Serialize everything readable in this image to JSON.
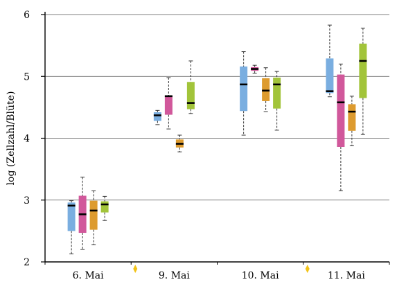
{
  "chart_data": {
    "type": "box",
    "title": "",
    "xlabel": "",
    "ylabel": "log (Zellzahl/Blüte)",
    "ylim": [
      2,
      6
    ],
    "yticks": [
      2,
      3,
      4,
      5,
      6
    ],
    "ytick_labels": [
      "2",
      "3",
      "4",
      "5",
      "6"
    ],
    "grid": true,
    "categories": [
      "6. Mai",
      "9. Mai",
      "10. Mai",
      "11. Mai"
    ],
    "series": [
      {
        "color": "#7aaee0",
        "boxes": [
          {
            "min": 2.13,
            "q1": 2.5,
            "median": 2.91,
            "q3": 2.96,
            "max": 2.99
          },
          {
            "min": 4.22,
            "q1": 4.28,
            "median": 4.37,
            "q3": 4.42,
            "max": 4.45
          },
          {
            "min": 4.05,
            "q1": 4.44,
            "median": 4.87,
            "q3": 5.16,
            "max": 5.4
          },
          {
            "min": 4.67,
            "q1": 4.73,
            "median": 4.76,
            "q3": 5.29,
            "max": 5.83
          }
        ]
      },
      {
        "color": "#d1589b",
        "boxes": [
          {
            "min": 2.2,
            "q1": 2.47,
            "median": 2.77,
            "q3": 3.07,
            "max": 3.37
          },
          {
            "min": 4.15,
            "q1": 4.38,
            "median": 4.68,
            "q3": 4.69,
            "max": 4.98
          },
          {
            "min": 5.05,
            "q1": 5.09,
            "median": 5.12,
            "q3": 5.15,
            "max": 5.18
          },
          {
            "min": 3.15,
            "q1": 3.86,
            "median": 4.58,
            "q3": 5.03,
            "max": 5.2
          }
        ]
      },
      {
        "color": "#dd9b2f",
        "boxes": [
          {
            "min": 2.28,
            "q1": 2.52,
            "median": 2.83,
            "q3": 2.99,
            "max": 3.15
          },
          {
            "min": 3.78,
            "q1": 3.85,
            "median": 3.91,
            "q3": 3.98,
            "max": 4.05
          },
          {
            "min": 4.43,
            "q1": 4.6,
            "median": 4.77,
            "q3": 4.97,
            "max": 5.14
          },
          {
            "min": 3.88,
            "q1": 4.12,
            "median": 4.43,
            "q3": 4.55,
            "max": 4.68
          }
        ]
      },
      {
        "color": "#a2c43a",
        "boxes": [
          {
            "min": 2.67,
            "q1": 2.8,
            "median": 2.93,
            "q3": 2.98,
            "max": 3.06
          },
          {
            "min": 4.4,
            "q1": 4.47,
            "median": 4.57,
            "q3": 4.91,
            "max": 5.25
          },
          {
            "min": 4.13,
            "q1": 4.48,
            "median": 4.87,
            "q3": 4.98,
            "max": 5.08
          },
          {
            "min": 4.06,
            "q1": 4.65,
            "median": 5.25,
            "q3": 5.53,
            "max": 5.78
          }
        ]
      }
    ],
    "markers": [
      {
        "x_between": [
          "6. Mai",
          "9. Mai"
        ],
        "y": 2,
        "color": "#f2c318",
        "shape": "diamond"
      },
      {
        "x_between": [
          "10. Mai",
          "11. Mai"
        ],
        "y": 2,
        "color": "#f2c318",
        "shape": "diamond"
      }
    ]
  }
}
